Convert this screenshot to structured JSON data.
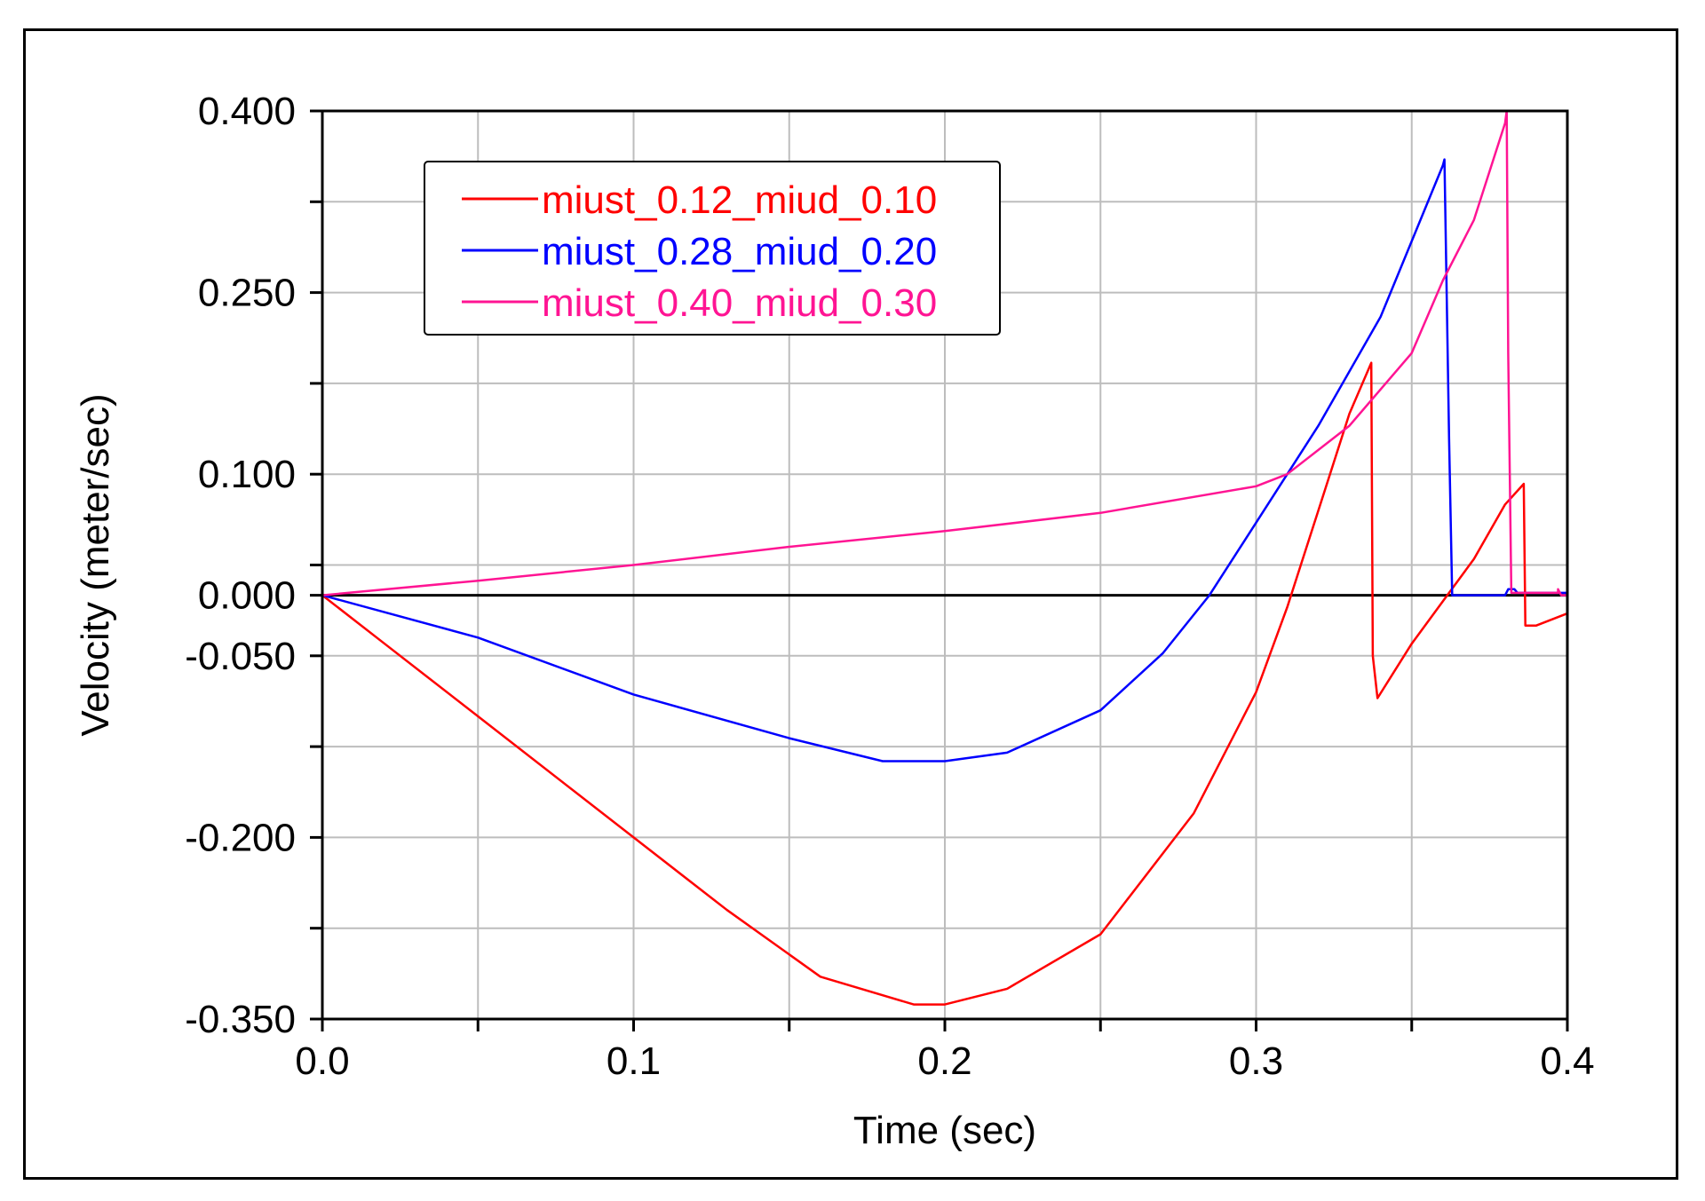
{
  "chart_data": {
    "type": "line",
    "title": "",
    "xlabel": "Time (sec)",
    "ylabel": "Velocity (meter/sec)",
    "xlim": [
      0.0,
      0.4
    ],
    "ylim": [
      -0.35,
      0.4
    ],
    "grid": true,
    "legend_position": "top-left",
    "x_ticks": [
      0.0,
      0.05,
      0.1,
      0.15,
      0.2,
      0.25,
      0.3,
      0.35,
      0.4
    ],
    "x_tick_labels": [
      "0.0",
      "",
      "0.1",
      "",
      "0.2",
      "",
      "0.3",
      "",
      "0.4"
    ],
    "y_ticks": [
      -0.35,
      -0.275,
      -0.2,
      -0.125,
      -0.05,
      0.0,
      0.025,
      0.1,
      0.175,
      0.25,
      0.325,
      0.4
    ],
    "y_tick_labels": [
      "-0.350",
      "",
      "-0.200",
      "",
      "-0.050",
      "0.000",
      "",
      "0.100",
      "",
      "0.250",
      "",
      "0.400"
    ],
    "series": [
      {
        "name": "miust_0.12_miud_0.10",
        "color": "#ff0000",
        "points": [
          [
            0.0,
            0.0
          ],
          [
            0.02,
            -0.04
          ],
          [
            0.05,
            -0.1
          ],
          [
            0.1,
            -0.2
          ],
          [
            0.13,
            -0.26
          ],
          [
            0.16,
            -0.315
          ],
          [
            0.19,
            -0.338
          ],
          [
            0.2,
            -0.338
          ],
          [
            0.22,
            -0.325
          ],
          [
            0.25,
            -0.28
          ],
          [
            0.28,
            -0.18
          ],
          [
            0.3,
            -0.08
          ],
          [
            0.31,
            -0.01
          ],
          [
            0.32,
            0.07
          ],
          [
            0.33,
            0.15
          ],
          [
            0.337,
            0.192
          ],
          [
            0.3375,
            -0.05
          ],
          [
            0.339,
            -0.085
          ],
          [
            0.35,
            -0.04
          ],
          [
            0.36,
            -0.005
          ],
          [
            0.37,
            0.03
          ],
          [
            0.38,
            0.075
          ],
          [
            0.386,
            0.092
          ],
          [
            0.3865,
            -0.025
          ],
          [
            0.39,
            -0.025
          ],
          [
            0.4,
            -0.015
          ]
        ]
      },
      {
        "name": "miust_0.28_miud_0.20",
        "color": "#0000ff",
        "points": [
          [
            0.0,
            0.0
          ],
          [
            0.05,
            -0.035
          ],
          [
            0.1,
            -0.082
          ],
          [
            0.15,
            -0.118
          ],
          [
            0.18,
            -0.137
          ],
          [
            0.2,
            -0.137
          ],
          [
            0.22,
            -0.13
          ],
          [
            0.25,
            -0.095
          ],
          [
            0.27,
            -0.048
          ],
          [
            0.285,
            0.0
          ],
          [
            0.3,
            0.06
          ],
          [
            0.32,
            0.14
          ],
          [
            0.34,
            0.23
          ],
          [
            0.36,
            0.355
          ],
          [
            0.3605,
            0.36
          ],
          [
            0.362,
            0.13
          ],
          [
            0.363,
            0.0
          ],
          [
            0.38,
            0.0
          ],
          [
            0.381,
            0.005
          ],
          [
            0.383,
            0.005
          ],
          [
            0.384,
            0.002
          ],
          [
            0.4,
            0.002
          ]
        ]
      },
      {
        "name": "miust_0.40_miud_0.30",
        "color": "#ff1493",
        "points": [
          [
            0.0,
            0.0
          ],
          [
            0.05,
            0.012
          ],
          [
            0.1,
            0.025
          ],
          [
            0.15,
            0.04
          ],
          [
            0.2,
            0.053
          ],
          [
            0.25,
            0.068
          ],
          [
            0.3,
            0.09
          ],
          [
            0.31,
            0.1
          ],
          [
            0.33,
            0.14
          ],
          [
            0.35,
            0.2
          ],
          [
            0.36,
            0.26
          ],
          [
            0.37,
            0.31
          ],
          [
            0.38,
            0.39
          ],
          [
            0.3805,
            0.4
          ],
          [
            0.381,
            0.2
          ],
          [
            0.382,
            0.002
          ],
          [
            0.397,
            0.002
          ],
          [
            0.397,
            0.005
          ],
          [
            0.398,
            0.0
          ],
          [
            0.4,
            0.0
          ]
        ]
      }
    ]
  }
}
